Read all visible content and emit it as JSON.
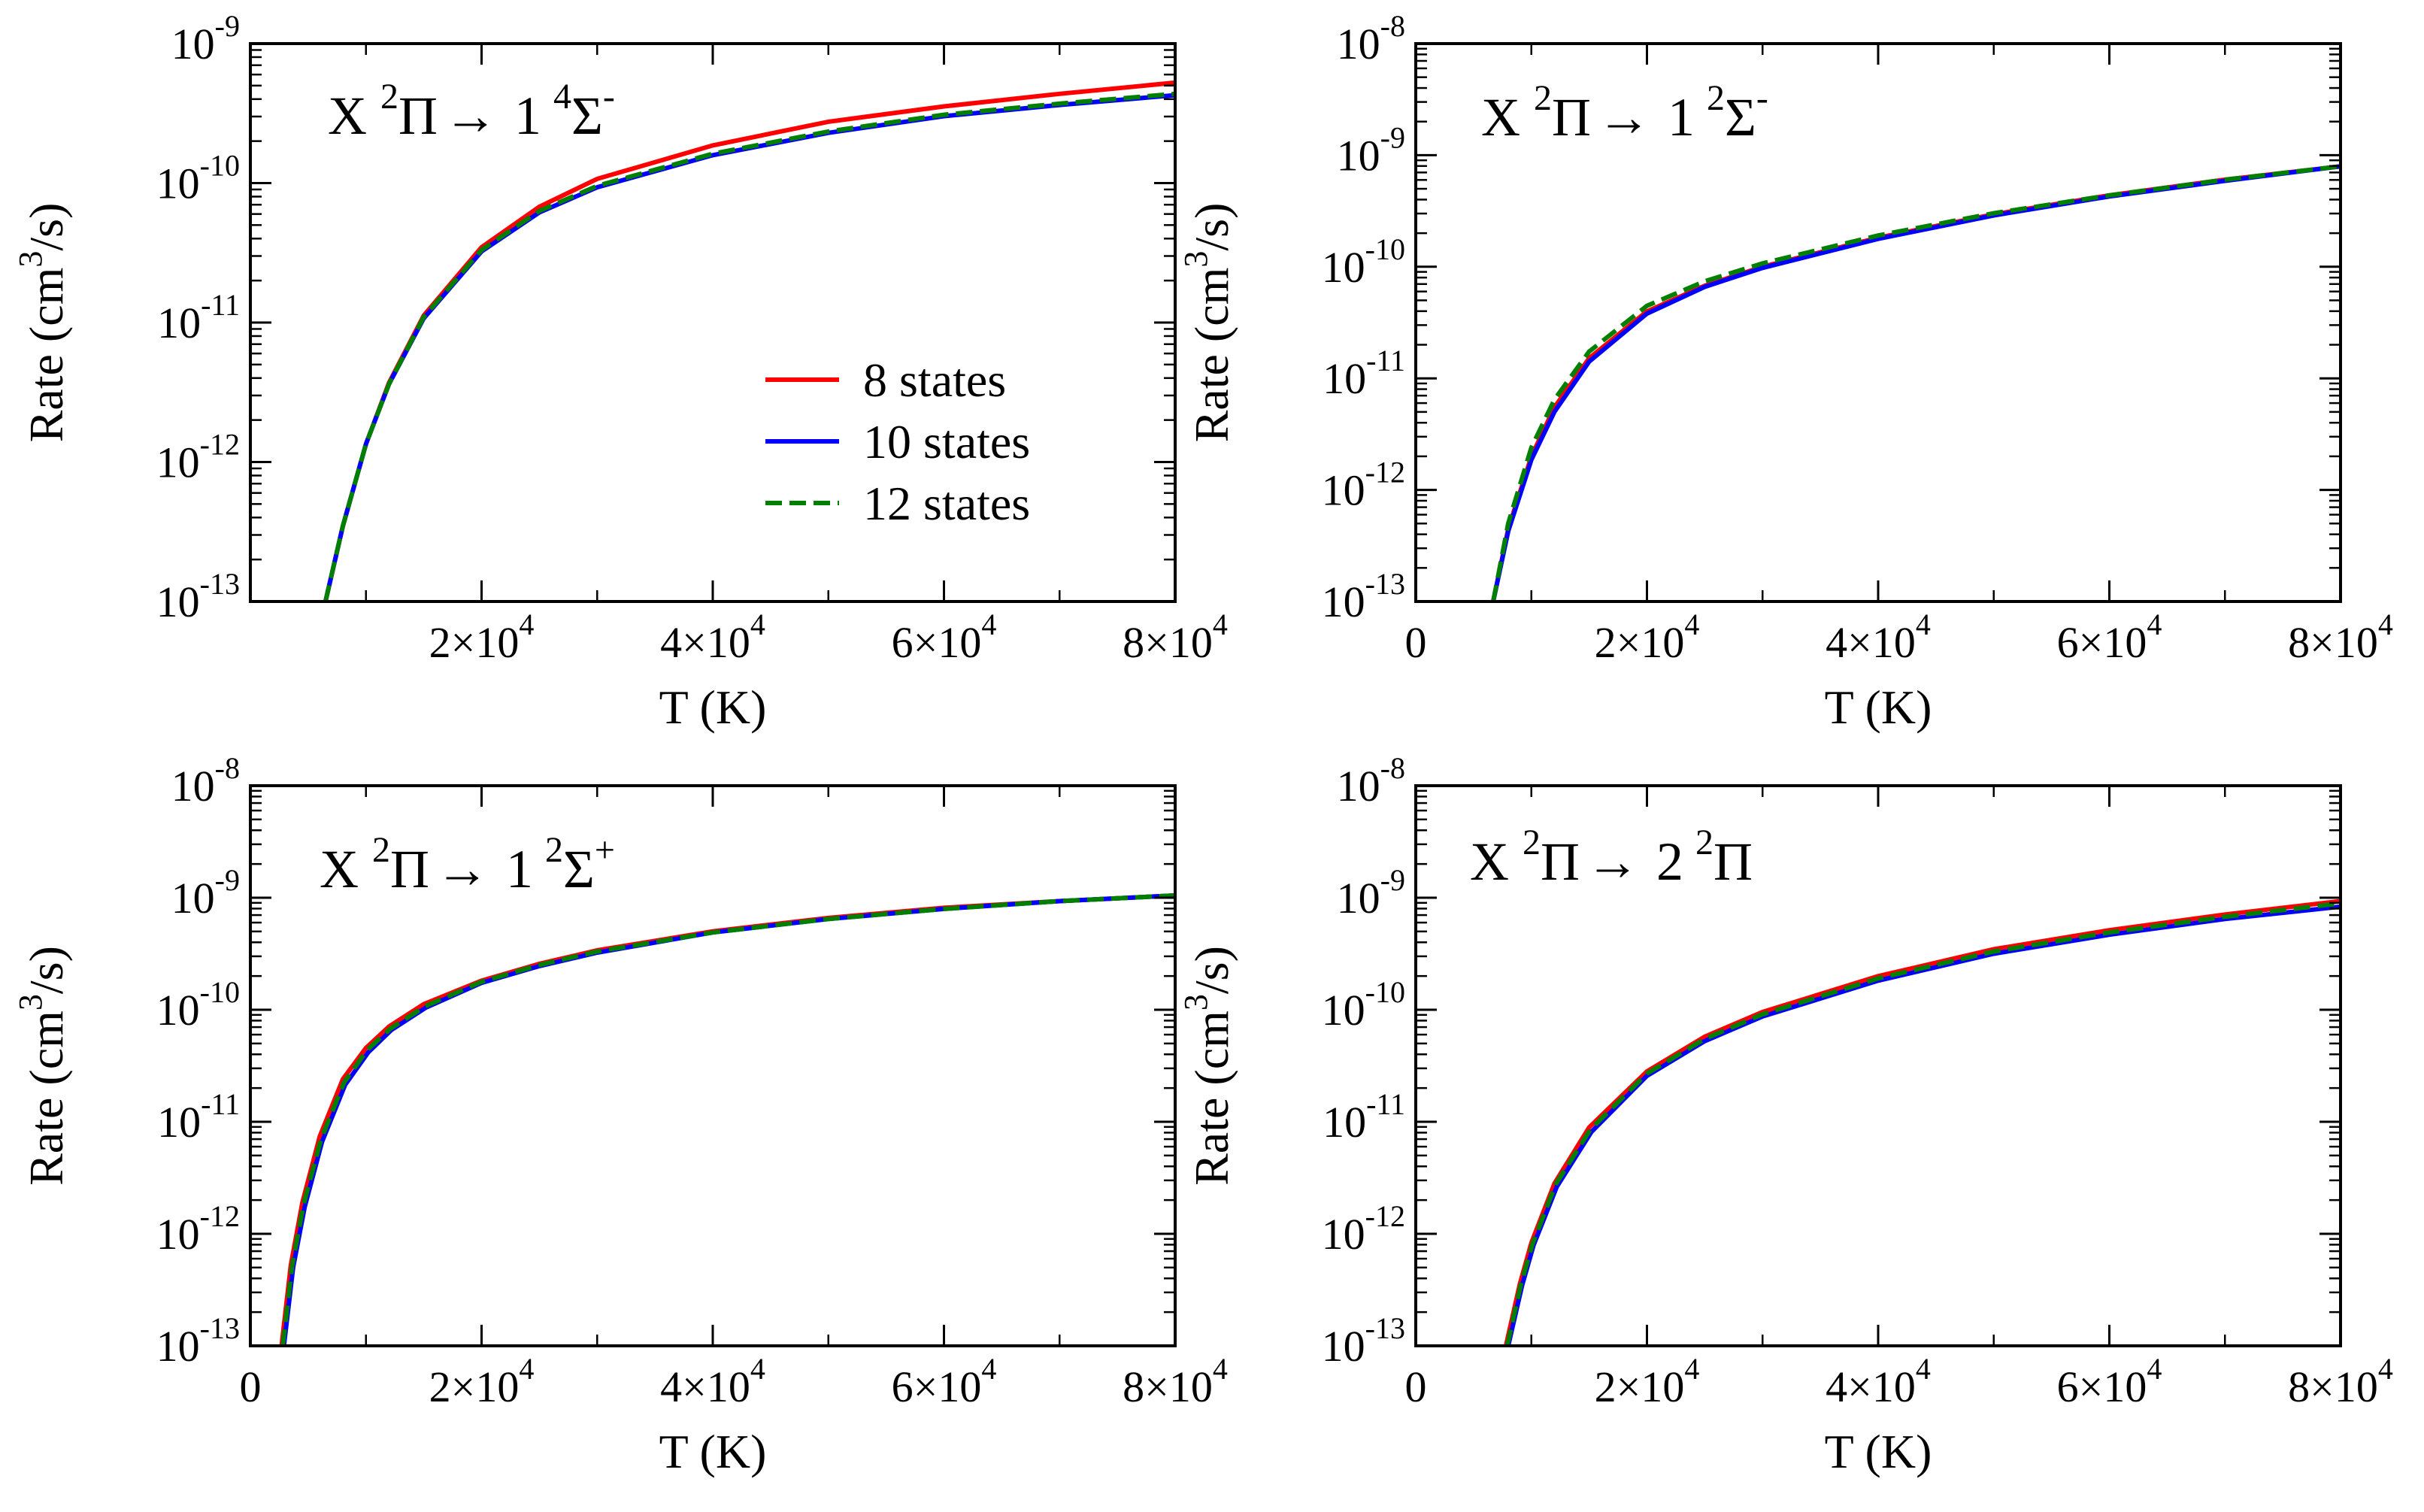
{
  "chart_data": [
    {
      "type": "line",
      "title_parts": [
        "X",
        "2",
        "Π",
        "→",
        "1",
        "4",
        "Σ",
        "-"
      ],
      "xlabel": "T (K)",
      "ylabel_parts": [
        "Rate (cm",
        "3",
        "/s)"
      ],
      "xlim": [
        0,
        80000
      ],
      "ylim_log10": [
        -13,
        -9
      ],
      "x_ticks": [
        {
          "value": 20000,
          "mant": "2×10",
          "exp": "4"
        },
        {
          "value": 40000,
          "mant": "4×10",
          "exp": "4"
        },
        {
          "value": 60000,
          "mant": "6×10",
          "exp": "4"
        },
        {
          "value": 80000,
          "mant": "8×10",
          "exp": "4"
        }
      ],
      "y_ticks": [
        {
          "value": -13,
          "base": "10",
          "exp": "-13"
        },
        {
          "value": -12,
          "base": "10",
          "exp": "-12"
        },
        {
          "value": -11,
          "base": "10",
          "exp": "-11"
        },
        {
          "value": -10,
          "base": "10",
          "exp": "-10"
        },
        {
          "value": -9,
          "base": "10",
          "exp": "-9"
        }
      ],
      "legend": {
        "show": true,
        "position": "center-right"
      },
      "series": [
        {
          "name": "8 states",
          "color": "#ff0000",
          "dash": "solid",
          "x": [
            6500,
            8000,
            10000,
            12000,
            15000,
            20000,
            25000,
            30000,
            40000,
            50000,
            60000,
            70000,
            80000
          ],
          "y": [
            -13.0,
            -12.46,
            -11.87,
            -11.43,
            -10.95,
            -10.46,
            -10.17,
            -9.97,
            -9.73,
            -9.56,
            -9.45,
            -9.36,
            -9.28
          ]
        },
        {
          "name": "10 states",
          "color": "#0000ff",
          "dash": "solid",
          "x": [
            6500,
            8000,
            10000,
            12000,
            15000,
            20000,
            25000,
            30000,
            40000,
            50000,
            60000,
            70000,
            80000
          ],
          "y": [
            -13.0,
            -12.46,
            -11.87,
            -11.44,
            -10.97,
            -10.49,
            -10.21,
            -10.03,
            -9.8,
            -9.64,
            -9.52,
            -9.44,
            -9.37
          ]
        },
        {
          "name": "12 states",
          "color": "#008000",
          "dash": "dashed",
          "x": [
            6500,
            8000,
            10000,
            12000,
            15000,
            20000,
            25000,
            30000,
            40000,
            50000,
            60000,
            70000,
            80000
          ],
          "y": [
            -13.0,
            -12.46,
            -11.87,
            -11.44,
            -10.96,
            -10.48,
            -10.2,
            -10.02,
            -9.79,
            -9.63,
            -9.51,
            -9.43,
            -9.36
          ]
        }
      ]
    },
    {
      "type": "line",
      "title_parts": [
        "X",
        "2",
        "Π",
        "→",
        "1",
        "2",
        "Σ",
        "-"
      ],
      "xlabel": "T (K)",
      "ylabel_parts": [
        "Rate (cm",
        "3",
        "/s)"
      ],
      "xlim": [
        0,
        80000
      ],
      "ylim_log10": [
        -13,
        -8
      ],
      "x_ticks": [
        {
          "value": 0,
          "mant": "0",
          "exp": ""
        },
        {
          "value": 20000,
          "mant": "2×10",
          "exp": "4"
        },
        {
          "value": 40000,
          "mant": "4×10",
          "exp": "4"
        },
        {
          "value": 60000,
          "mant": "6×10",
          "exp": "4"
        },
        {
          "value": 80000,
          "mant": "8×10",
          "exp": "4"
        }
      ],
      "y_ticks": [
        {
          "value": -13,
          "base": "10",
          "exp": "-13"
        },
        {
          "value": -12,
          "base": "10",
          "exp": "-12"
        },
        {
          "value": -11,
          "base": "10",
          "exp": "-11"
        },
        {
          "value": -10,
          "base": "10",
          "exp": "-10"
        },
        {
          "value": -9,
          "base": "10",
          "exp": "-9"
        },
        {
          "value": -8,
          "base": "10",
          "exp": "-8"
        }
      ],
      "legend": {
        "show": false
      },
      "series": [
        {
          "name": "8 states",
          "color": "#ff0000",
          "dash": "solid",
          "x": [
            6700,
            8000,
            10000,
            12000,
            15000,
            20000,
            25000,
            30000,
            40000,
            50000,
            60000,
            70000,
            80000
          ],
          "y": [
            -13.0,
            -12.35,
            -11.7,
            -11.26,
            -10.82,
            -10.4,
            -10.17,
            -10.0,
            -9.74,
            -9.53,
            -9.36,
            -9.22,
            -9.1
          ]
        },
        {
          "name": "10 states",
          "color": "#0000ff",
          "dash": "solid",
          "x": [
            6700,
            8000,
            10000,
            12000,
            15000,
            20000,
            25000,
            30000,
            40000,
            50000,
            60000,
            70000,
            80000
          ],
          "y": [
            -13.0,
            -12.37,
            -11.73,
            -11.3,
            -10.85,
            -10.42,
            -10.18,
            -10.01,
            -9.75,
            -9.54,
            -9.37,
            -9.23,
            -9.1
          ]
        },
        {
          "name": "12 states",
          "color": "#008000",
          "dash": "dashed",
          "x": [
            6700,
            8000,
            10000,
            12000,
            15000,
            20000,
            25000,
            30000,
            40000,
            50000,
            60000,
            70000,
            80000
          ],
          "y": [
            -13.0,
            -12.3,
            -11.62,
            -11.19,
            -10.76,
            -10.35,
            -10.13,
            -9.97,
            -9.72,
            -9.52,
            -9.36,
            -9.22,
            -9.1
          ]
        }
      ]
    },
    {
      "type": "line",
      "title_parts": [
        "X",
        "2",
        "Π",
        "→",
        "1",
        "2",
        "Σ",
        "+"
      ],
      "xlabel": "T (K)",
      "ylabel_parts": [
        "Rate (cm",
        "3",
        "/s)"
      ],
      "xlim": [
        0,
        80000
      ],
      "ylim_log10": [
        -13,
        -8
      ],
      "x_ticks": [
        {
          "value": 0,
          "mant": "0",
          "exp": ""
        },
        {
          "value": 20000,
          "mant": "2×10",
          "exp": "4"
        },
        {
          "value": 40000,
          "mant": "4×10",
          "exp": "4"
        },
        {
          "value": 60000,
          "mant": "6×10",
          "exp": "4"
        },
        {
          "value": 80000,
          "mant": "8×10",
          "exp": "4"
        }
      ],
      "y_ticks": [
        {
          "value": -13,
          "base": "10",
          "exp": "-13"
        },
        {
          "value": -12,
          "base": "10",
          "exp": "-12"
        },
        {
          "value": -11,
          "base": "10",
          "exp": "-11"
        },
        {
          "value": -10,
          "base": "10",
          "exp": "-10"
        },
        {
          "value": -9,
          "base": "10",
          "exp": "-9"
        },
        {
          "value": -8,
          "base": "10",
          "exp": "-8"
        }
      ],
      "legend": {
        "show": false
      },
      "series": [
        {
          "name": "8 states",
          "color": "#ff0000",
          "dash": "solid",
          "x": [
            2700,
            3500,
            4500,
            6000,
            8000,
            10000,
            12000,
            15000,
            20000,
            25000,
            30000,
            40000,
            50000,
            60000,
            70000,
            80000
          ],
          "y": [
            -13.0,
            -12.28,
            -11.72,
            -11.13,
            -10.62,
            -10.34,
            -10.15,
            -9.95,
            -9.74,
            -9.59,
            -9.47,
            -9.3,
            -9.18,
            -9.09,
            -9.03,
            -8.98
          ]
        },
        {
          "name": "10 states",
          "color": "#0000ff",
          "dash": "solid",
          "x": [
            2900,
            3700,
            4700,
            6200,
            8200,
            10200,
            12200,
            15200,
            20000,
            25000,
            30000,
            40000,
            50000,
            60000,
            70000,
            80000
          ],
          "y": [
            -13.0,
            -12.3,
            -11.76,
            -11.18,
            -10.67,
            -10.38,
            -10.18,
            -9.98,
            -9.76,
            -9.61,
            -9.49,
            -9.31,
            -9.19,
            -9.1,
            -9.03,
            -8.98
          ]
        },
        {
          "name": "12 states",
          "color": "#008000",
          "dash": "dashed",
          "x": [
            2800,
            3600,
            4600,
            6100,
            8100,
            10100,
            12100,
            15100,
            20000,
            25000,
            30000,
            40000,
            50000,
            60000,
            70000,
            80000
          ],
          "y": [
            -13.0,
            -12.29,
            -11.74,
            -11.16,
            -10.65,
            -10.36,
            -10.17,
            -9.97,
            -9.75,
            -9.6,
            -9.48,
            -9.31,
            -9.19,
            -9.1,
            -9.03,
            -8.98
          ]
        }
      ]
    },
    {
      "type": "line",
      "title_parts": [
        "X",
        "2",
        "Π",
        "→",
        "2",
        "2",
        "Π",
        ""
      ],
      "xlabel": "T (K)",
      "ylabel_parts": [
        "Rate (cm",
        "3",
        "/s)"
      ],
      "xlim": [
        0,
        80000
      ],
      "ylim_log10": [
        -13,
        -8
      ],
      "x_ticks": [
        {
          "value": 0,
          "mant": "0",
          "exp": ""
        },
        {
          "value": 20000,
          "mant": "2×10",
          "exp": "4"
        },
        {
          "value": 40000,
          "mant": "4×10",
          "exp": "4"
        },
        {
          "value": 60000,
          "mant": "6×10",
          "exp": "4"
        },
        {
          "value": 80000,
          "mant": "8×10",
          "exp": "4"
        }
      ],
      "y_ticks": [
        {
          "value": -13,
          "base": "10",
          "exp": "-13"
        },
        {
          "value": -12,
          "base": "10",
          "exp": "-12"
        },
        {
          "value": -11,
          "base": "10",
          "exp": "-11"
        },
        {
          "value": -10,
          "base": "10",
          "exp": "-10"
        },
        {
          "value": -9,
          "base": "10",
          "exp": "-9"
        },
        {
          "value": -8,
          "base": "10",
          "exp": "-8"
        }
      ],
      "legend": {
        "show": false
      },
      "series": [
        {
          "name": "8 states",
          "color": "#ff0000",
          "dash": "solid",
          "x": [
            7800,
            9000,
            10000,
            12000,
            15000,
            20000,
            25000,
            30000,
            40000,
            50000,
            60000,
            70000,
            80000
          ],
          "y": [
            -13.0,
            -12.45,
            -12.08,
            -11.55,
            -11.05,
            -10.55,
            -10.24,
            -10.02,
            -9.7,
            -9.46,
            -9.29,
            -9.15,
            -9.03
          ]
        },
        {
          "name": "10 states",
          "color": "#0000ff",
          "dash": "solid",
          "x": [
            8000,
            9200,
            10200,
            12200,
            15200,
            20000,
            25000,
            30000,
            40000,
            50000,
            60000,
            70000,
            80000
          ],
          "y": [
            -13.0,
            -12.46,
            -12.1,
            -11.58,
            -11.09,
            -10.59,
            -10.28,
            -10.06,
            -9.74,
            -9.5,
            -9.33,
            -9.19,
            -9.08
          ]
        },
        {
          "name": "12 states",
          "color": "#008000",
          "dash": "dashed",
          "x": [
            7900,
            9100,
            10100,
            12100,
            15100,
            20000,
            25000,
            30000,
            40000,
            50000,
            60000,
            70000,
            80000
          ],
          "y": [
            -13.0,
            -12.45,
            -12.09,
            -11.56,
            -11.07,
            -10.57,
            -10.26,
            -10.04,
            -9.72,
            -9.48,
            -9.31,
            -9.17,
            -9.05
          ]
        }
      ]
    }
  ]
}
